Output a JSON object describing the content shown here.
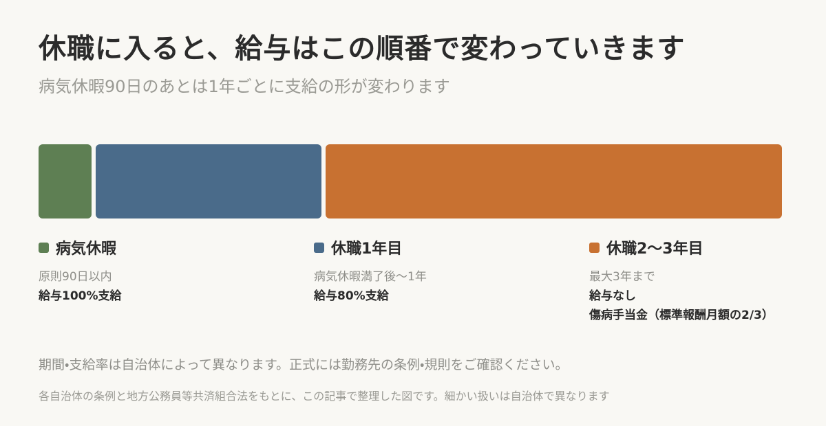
{
  "header": {
    "title": "休職に入ると、給与はこの順番で変わっていきます",
    "subtitle": "病気休暇90日のあとは1年ごとに支給の形が変わります"
  },
  "stages": [
    {
      "label": "病気休暇",
      "period": "原則90日以内",
      "lines": [
        "給与100%支給"
      ]
    },
    {
      "label": "休職1年目",
      "period": "病気休暇満了後〜1年",
      "lines": [
        "給与80%支給"
      ]
    },
    {
      "label": "休職2〜3年目",
      "period": "最大3年まで",
      "lines": [
        "給与なし",
        "傷病手当金（標準報酬月額の2/3）"
      ]
    }
  ],
  "note": "期間・支給率は自治体によって異なります。正式には勤務先の条例・規則をご確認ください。",
  "source": "各自治体の条例と地方公務員等共済組合法をもとに、この記事で整理した図です。細かい扱いは自治体で異なります"
}
